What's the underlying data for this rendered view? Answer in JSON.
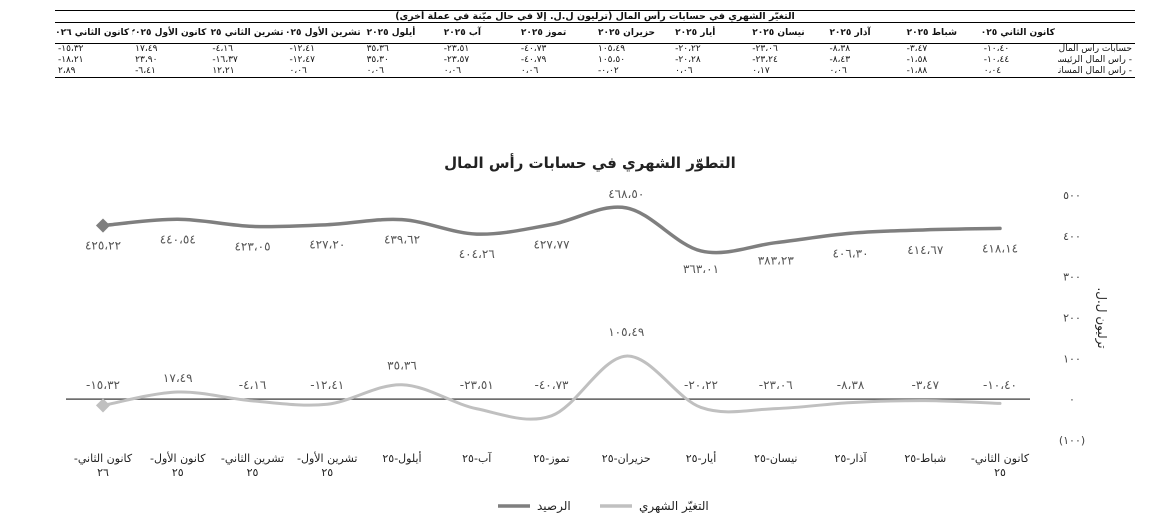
{
  "table": {
    "title": "التغيّر الشهري في حسابات رأس المال (ترليون ل.ل. إلا في حال ميّنة في عملة أخرى)",
    "columns": [
      "كانون الثاني ٢٠٢٥",
      "شباط ٢٠٢٥",
      "آذار ٢٠٢٥",
      "نيسان ٢٠٢٥",
      "أيار ٢٠٢٥",
      "حزيران ٢٠٢٥",
      "تموز ٢٠٢٥",
      "آب ٢٠٢٥",
      "أيلول ٢٠٢٥",
      "تشرين الأول ٢٠٢٥",
      "تشرين الثاني ٢٠٢٥",
      "كانون الأول ٢٠٢٥",
      "كانون الثاني ٢٠٢٦"
    ],
    "rows": [
      {
        "label": "حسابات رأس المال، ومنها:",
        "values": [
          "-١٠،٤٠",
          "-٣،٤٧",
          "-٨،٣٨",
          "-٢٣،٠٦",
          "-٢٠،٢٢",
          "١٠٥،٤٩",
          "-٤٠،٧٣",
          "-٢٣،٥١",
          "٣٥،٣٦",
          "-١٢،٤١",
          "-٤،١٦",
          "١٧،٤٩",
          "-١٥،٣٢"
        ]
      },
      {
        "label": "- رأس المال الرئيسي.",
        "values": [
          "-١٠،٤٤",
          "-١،٥٨",
          "-٨،٤٣",
          "-٢٣،٢٤",
          "-٢٠،٢٨",
          "١٠٥،٥٠",
          "-٤٠،٧٩",
          "-٢٣،٥٧",
          "٣٥،٣٠",
          "-١٢،٤٧",
          "-١٦،٣٧",
          "٢٣،٩٠",
          "-١٨،٢١"
        ]
      },
      {
        "label": "- رأس المال المساند",
        "values": [
          "٠،٠٤",
          "-١،٨٨",
          "٠،٠٦",
          "٠،١٧",
          "٠،٠٦",
          "-٠،٠٢",
          "٠،٠٦",
          "٠،٠٦",
          "٠،٠٦",
          "٠،٠٦",
          "١٢،٢١",
          "-٦،٤١",
          "٢،٨٩"
        ]
      }
    ]
  },
  "chart_data": {
    "type": "line",
    "title": "التطوّر الشهري في حسابات رأس المال",
    "ylabel": "ترليون ل.ل.",
    "ylim": [
      -100,
      500
    ],
    "yticks": [
      -100,
      0,
      100,
      200,
      300,
      400,
      500
    ],
    "ytick_labels": [
      "(١٠٠)",
      "٠",
      "١٠٠",
      "٢٠٠",
      "٣٠٠",
      "٤٠٠",
      "٥٠٠"
    ],
    "categories": [
      "كانون الثاني- ٢٥",
      "شباط-٢٥",
      "آذار-٢٥",
      "نيسان-٢٥",
      "أيار-٢٥",
      "حزيران-٢٥",
      "تموز-٢٥",
      "آب-٢٥",
      "أيلول-٢٥",
      "تشرين الأول- ٢٥",
      "تشرين الثاني- ٢٥",
      "كانون الأول- ٢٥",
      "كانون الثاني- ٢٦"
    ],
    "series": [
      {
        "name": "الرصيد",
        "color": "#7f7f7f",
        "values": [
          418.14,
          414.67,
          406.3,
          383.23,
          363.01,
          468.5,
          427.77,
          404.26,
          439.62,
          427.2,
          423.05,
          440.54,
          425.22
        ],
        "labels": [
          "٤١٨،١٤",
          "٤١٤،٦٧",
          "٤٠٦،٣٠",
          "٣٨٣،٢٣",
          "٣٦٣،٠١",
          "٤٦٨،٥٠",
          "٤٢٧،٧٧",
          "٤٠٤،٢٦",
          "٤٣٩،٦٢",
          "٤٢٧،٢٠",
          "٤٢٣،٠٥",
          "٤٤٠،٥٤",
          "٤٢٥،٢٢"
        ]
      },
      {
        "name": "التغيّر الشهري",
        "color": "#c0c0c0",
        "values": [
          -10.4,
          -3.47,
          -8.38,
          -23.06,
          -20.22,
          105.49,
          -40.73,
          -23.51,
          35.36,
          -12.41,
          -4.16,
          17.49,
          -15.32
        ],
        "labels": [
          "-١٠،٤٠",
          "-٣،٤٧",
          "-٨،٣٨",
          "-٢٣،٠٦",
          "-٢٠،٢٢",
          "١٠٥،٤٩",
          "-٤٠،٧٣",
          "-٢٣،٥١",
          "٣٥،٣٦",
          "-١٢،٤١",
          "-٤،١٦",
          "١٧،٤٩",
          "-١٥،٣٢"
        ]
      }
    ],
    "legend": "bottom",
    "grid": false
  }
}
